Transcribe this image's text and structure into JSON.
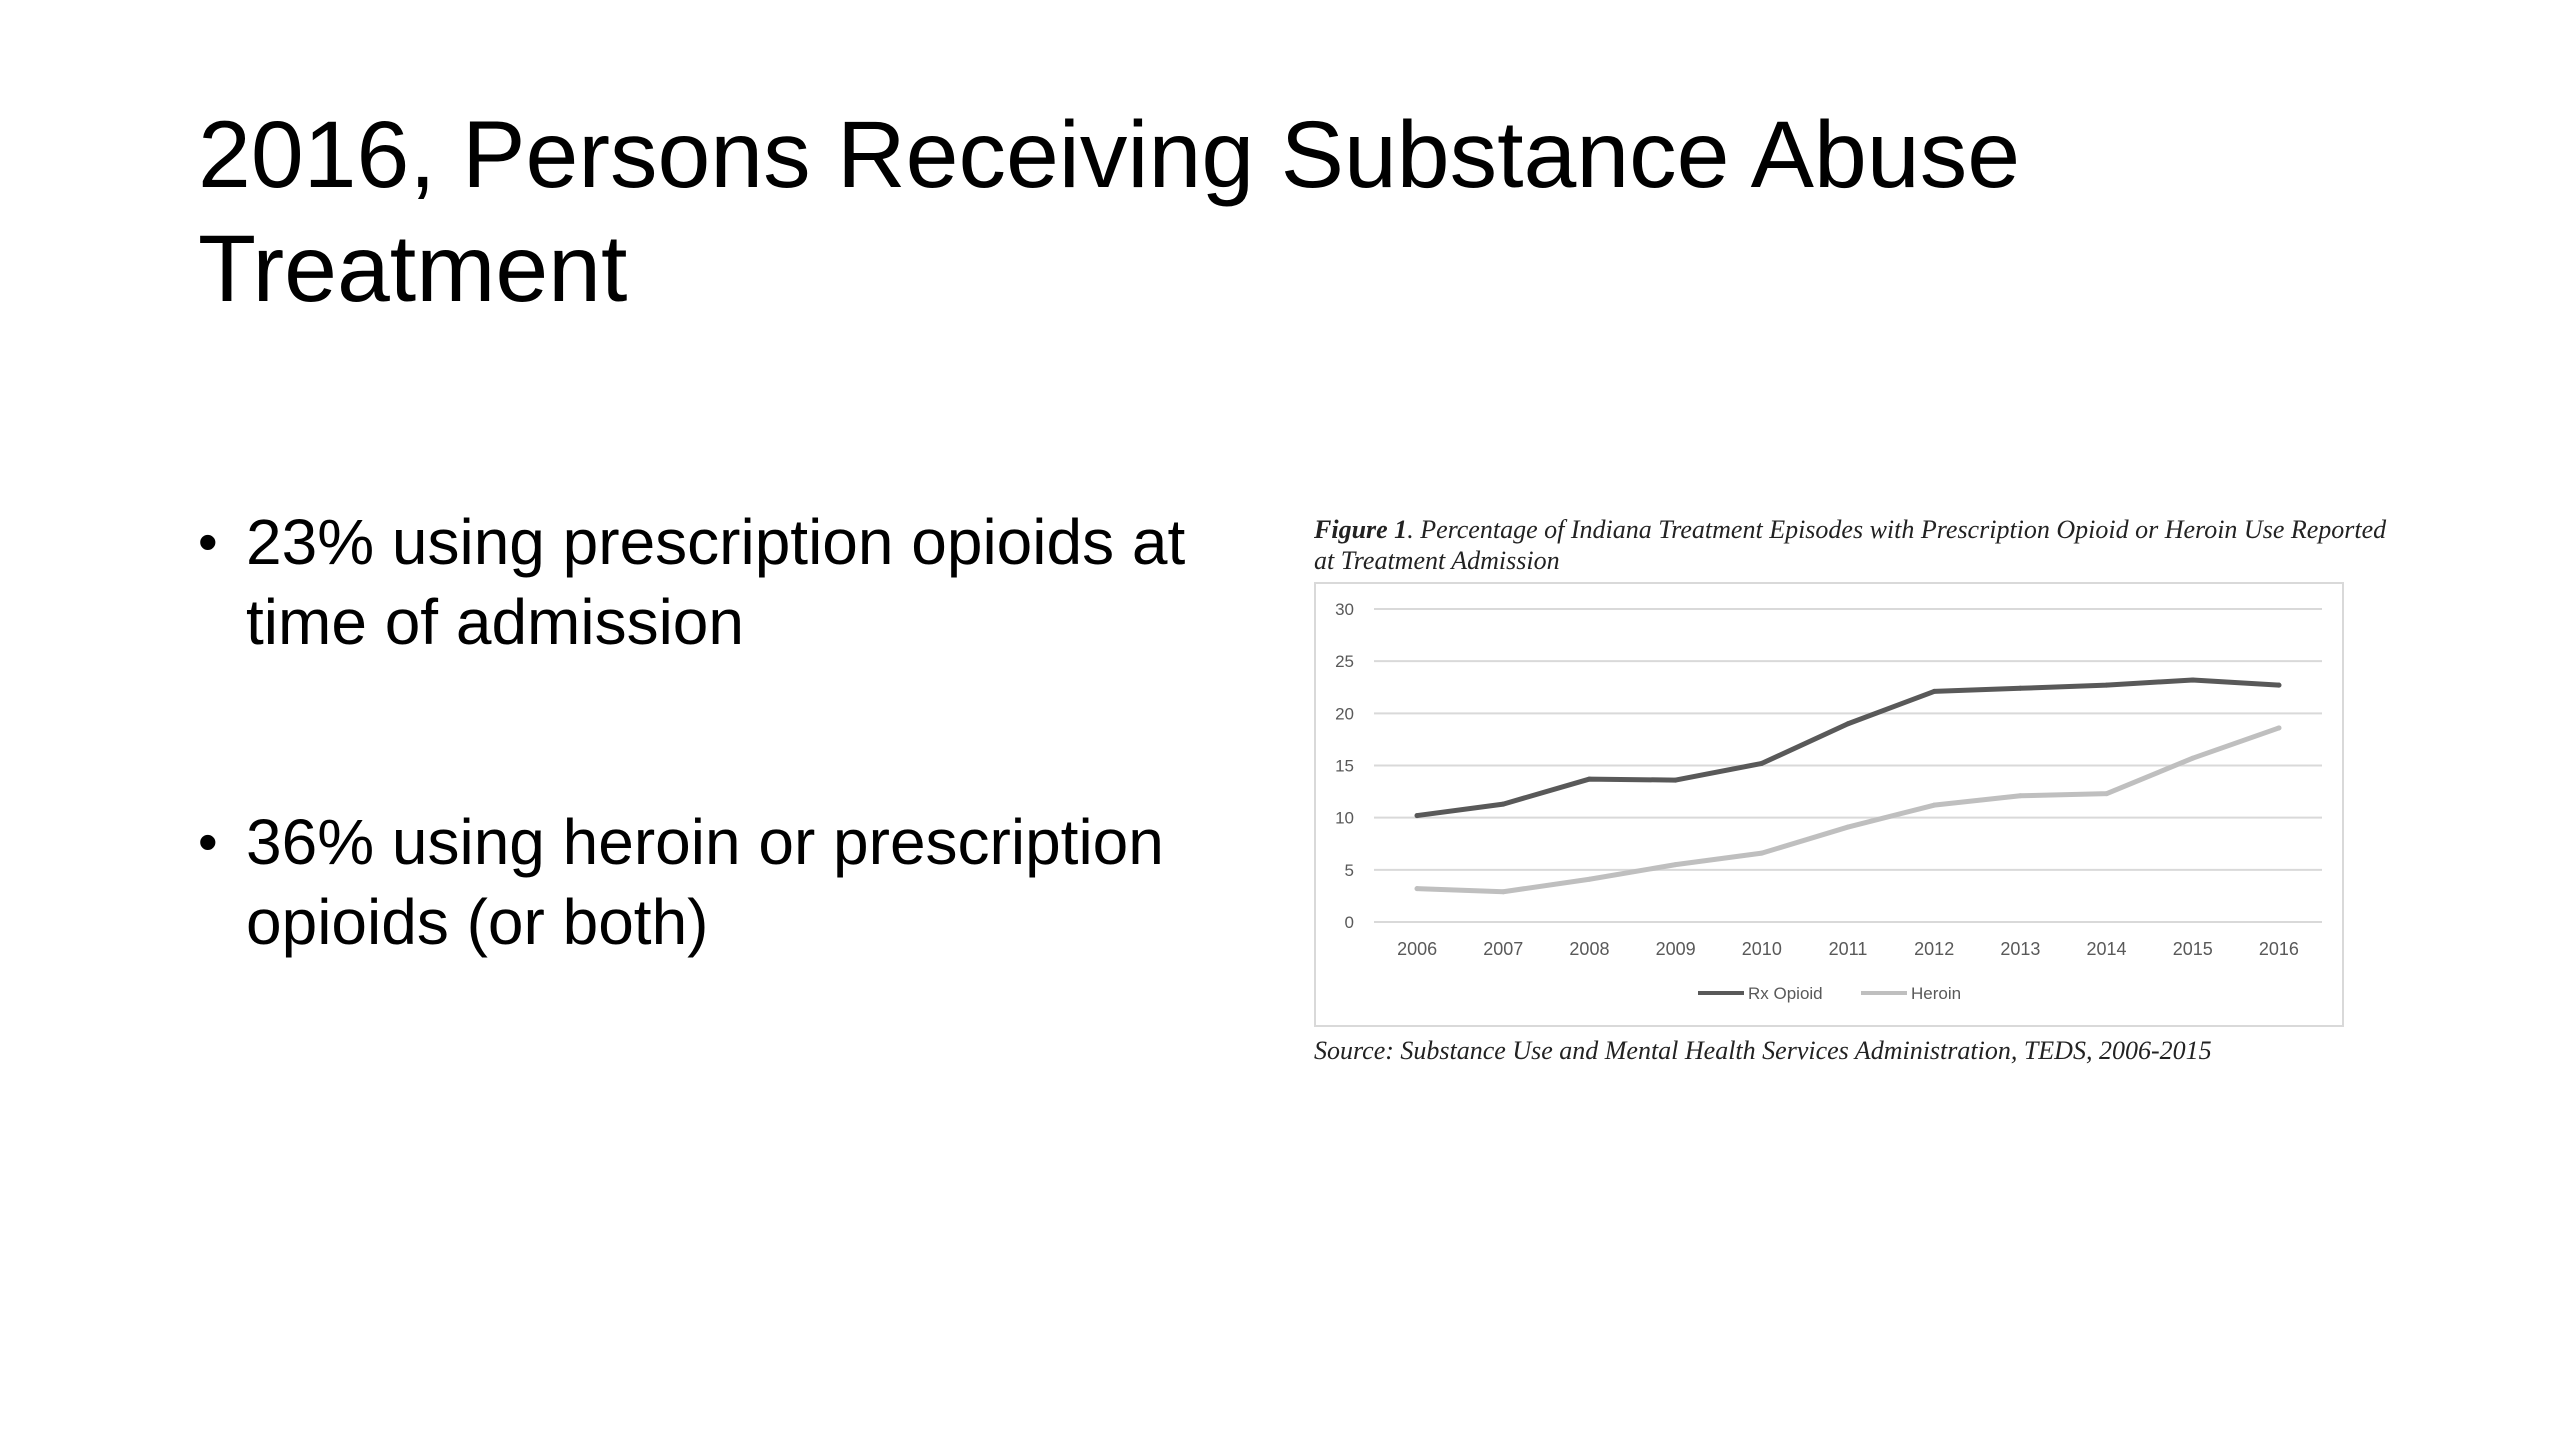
{
  "slide": {
    "title": "2016, Persons Receiving Substance Abuse Treatment",
    "bullets": [
      {
        "text": "23% using prescription opioids at time of admission"
      },
      {
        "text": "36% using heroin or prescription opioids (or both)"
      }
    ],
    "bullet_glyph": "•"
  },
  "figure": {
    "caption_label": "Figure 1",
    "caption_text": ". Percentage of Indiana Treatment Episodes with Prescription Opioid or Heroin Use Reported at Treatment Admission",
    "source": "Source: Substance Use and Mental Health Services Administration, TEDS, 2006-2015"
  },
  "chart_data": {
    "type": "line",
    "title": "",
    "xlabel": "",
    "ylabel": "",
    "x": [
      "2006",
      "2007",
      "2008",
      "2009",
      "2010",
      "2011",
      "2012",
      "2013",
      "2014",
      "2015",
      "2016"
    ],
    "ylim": [
      0,
      30
    ],
    "yticks": [
      0,
      5,
      10,
      15,
      20,
      25,
      30
    ],
    "grid": true,
    "legend_position": "bottom-center",
    "series": [
      {
        "name": "Rx Opioid",
        "color": "#595959",
        "values": [
          10.2,
          11.3,
          13.7,
          13.6,
          15.2,
          19.0,
          22.1,
          22.4,
          22.7,
          23.2,
          22.7
        ]
      },
      {
        "name": "Heroin",
        "color": "#bfbfbf",
        "values": [
          3.2,
          2.9,
          4.1,
          5.5,
          6.6,
          9.1,
          11.2,
          12.1,
          12.3,
          15.7,
          18.6
        ]
      }
    ]
  }
}
